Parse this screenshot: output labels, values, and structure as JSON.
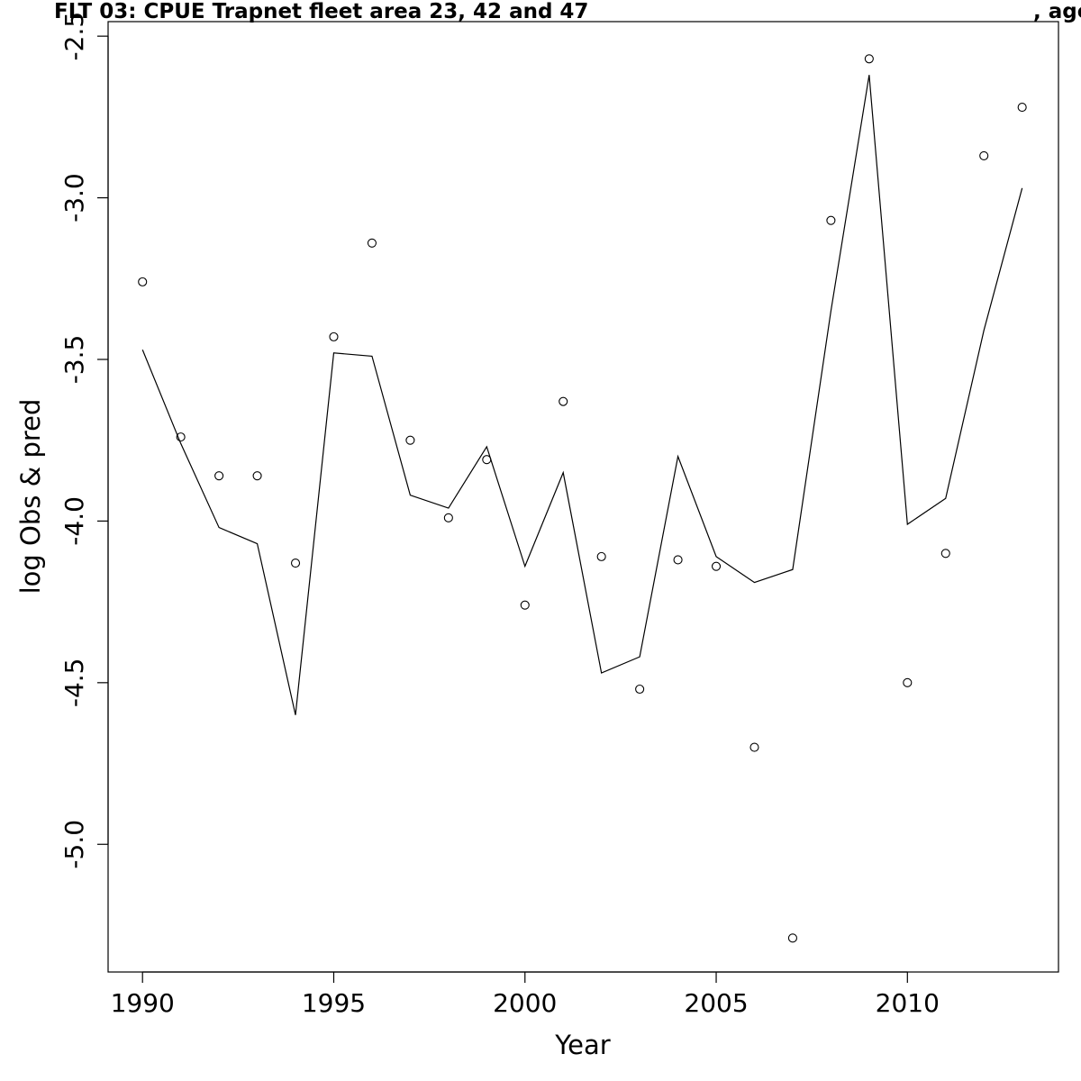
{
  "title": {
    "main": "FLT 03: CPUE Trapnet fleet area 23, 42 and 47",
    "suffix": ", age"
  },
  "chart_data": {
    "type": "line",
    "xlabel": "Year",
    "ylabel": "log Obs & pred",
    "xlim": [
      1989.1,
      2013.95
    ],
    "ylim": [
      -5.395,
      -2.455
    ],
    "x_ticks": [
      "1990",
      "1995",
      "2000",
      "2005",
      "2010"
    ],
    "x_tick_values": [
      1990,
      1995,
      2000,
      2005,
      2010
    ],
    "y_ticks": [
      "-2.5",
      "-3.0",
      "-3.5",
      "-4.0",
      "-4.5",
      "-5.0"
    ],
    "y_tick_values": [
      -2.5,
      -3.0,
      -3.5,
      -4.0,
      -4.5,
      -5.0
    ],
    "grid": false,
    "x": [
      1990,
      1991,
      1992,
      1993,
      1994,
      1995,
      1996,
      1997,
      1998,
      1999,
      2000,
      2001,
      2002,
      2003,
      2004,
      2005,
      2006,
      2007,
      2008,
      2009,
      2010,
      2011,
      2012,
      2013
    ],
    "series": [
      {
        "style": "points",
        "values": [
          -3.26,
          -3.74,
          -3.86,
          -3.86,
          -4.13,
          -3.43,
          -3.14,
          -3.75,
          -3.99,
          -3.81,
          -4.26,
          -3.63,
          -4.11,
          -4.52,
          -4.12,
          -4.14,
          -4.7,
          -5.29,
          -3.07,
          -2.57,
          -4.5,
          -4.1,
          -2.87,
          -2.72
        ]
      },
      {
        "style": "line",
        "values": [
          -3.47,
          -3.76,
          -4.02,
          -4.07,
          -4.6,
          -3.48,
          -3.49,
          -3.92,
          -3.96,
          -3.77,
          -4.14,
          -3.85,
          -4.47,
          -4.42,
          -3.8,
          -4.11,
          -4.19,
          -4.15,
          -3.35,
          -2.62,
          -4.01,
          -3.93,
          -3.41,
          -2.97
        ]
      }
    ]
  }
}
